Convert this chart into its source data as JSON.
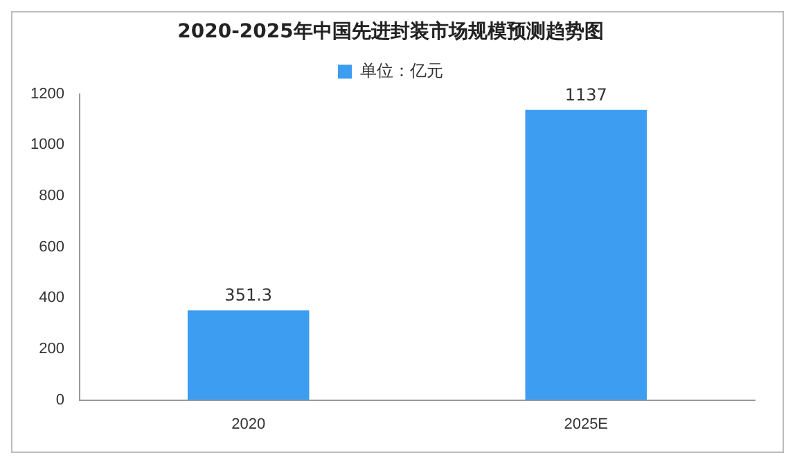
{
  "chart_data": {
    "type": "bar",
    "title": "2020-2025年中国先进封装市场规模预测趋势图",
    "categories": [
      "2020",
      "2025E"
    ],
    "series": [
      {
        "name": "单位：亿元",
        "color": "#3d9df0",
        "values": [
          351.3,
          1137
        ]
      }
    ],
    "ylim": [
      0,
      1200
    ],
    "yticks": [
      0,
      200,
      400,
      600,
      800,
      1000,
      1200
    ],
    "grid": false,
    "legend": "top",
    "data_labels": true
  }
}
